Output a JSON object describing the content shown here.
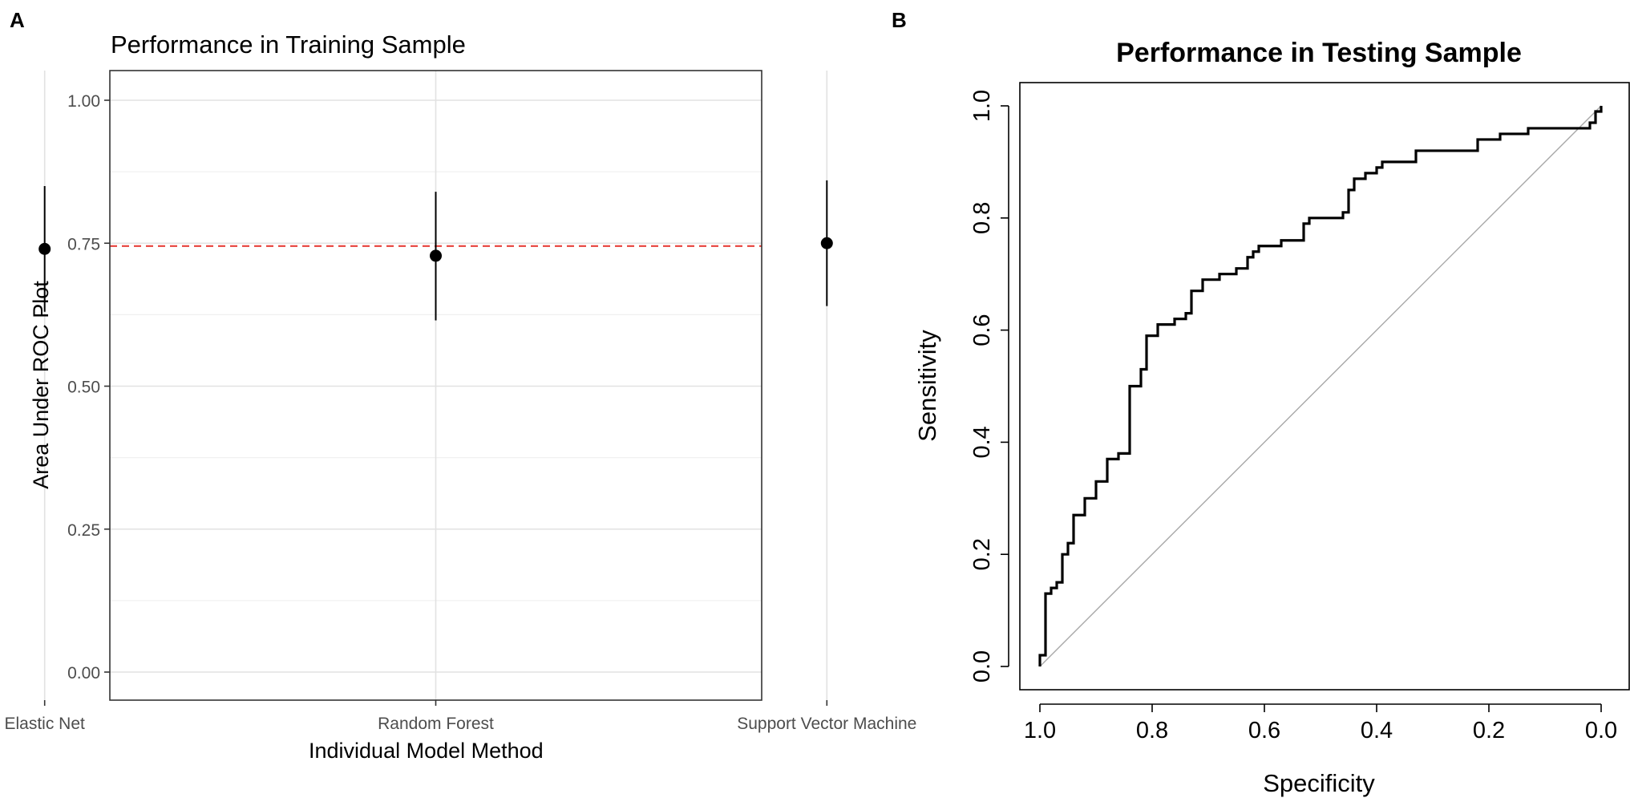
{
  "chart_data": [
    {
      "panel_label": "A",
      "type": "scatter",
      "title": "Performance in Training Sample",
      "xlabel": "Individual Model Method",
      "ylabel": "Area Under ROC Plot",
      "ylim": [
        0,
        1
      ],
      "yticks": [
        "0.00",
        "0.25",
        "0.50",
        "0.75",
        "1.00"
      ],
      "categories": [
        "Elastic Net",
        "Random Forest",
        "Support Vector Machine"
      ],
      "values": [
        0.74,
        0.728,
        0.75
      ],
      "lower": [
        0.63,
        0.615,
        0.64
      ],
      "upper": [
        0.85,
        0.84,
        0.86
      ],
      "reference_line": 0.745,
      "reference_color": "#e8413b",
      "grid": true
    },
    {
      "panel_label": "B",
      "type": "line",
      "title": "Performance in Testing Sample",
      "xlabel": "Specificity",
      "ylabel": "Sensitivity",
      "xlim": [
        1.0,
        0.0
      ],
      "ylim": [
        0,
        1
      ],
      "xticks": [
        "1.0",
        "0.8",
        "0.6",
        "0.4",
        "0.2",
        "0.0"
      ],
      "yticks": [
        "0.0",
        "0.2",
        "0.4",
        "0.6",
        "0.8",
        "1.0"
      ],
      "diagonal_color": "#a8a8a8",
      "roc_curve": {
        "specificity": [
          1.0,
          1.0,
          0.99,
          0.99,
          0.98,
          0.97,
          0.96,
          0.95,
          0.94,
          0.93,
          0.92,
          0.9,
          0.89,
          0.88,
          0.86,
          0.85,
          0.84,
          0.82,
          0.81,
          0.79,
          0.76,
          0.74,
          0.73,
          0.71,
          0.68,
          0.65,
          0.63,
          0.62,
          0.61,
          0.59,
          0.57,
          0.54,
          0.53,
          0.52,
          0.49,
          0.46,
          0.45,
          0.44,
          0.42,
          0.4,
          0.39,
          0.36,
          0.33,
          0.3,
          0.25,
          0.22,
          0.18,
          0.13,
          0.08,
          0.02,
          0.01,
          0.0
        ],
        "sensitivity": [
          0.0,
          0.02,
          0.02,
          0.13,
          0.14,
          0.15,
          0.2,
          0.22,
          0.27,
          0.27,
          0.3,
          0.33,
          0.33,
          0.37,
          0.38,
          0.38,
          0.5,
          0.53,
          0.59,
          0.61,
          0.62,
          0.63,
          0.67,
          0.69,
          0.7,
          0.71,
          0.73,
          0.74,
          0.75,
          0.75,
          0.76,
          0.76,
          0.79,
          0.8,
          0.8,
          0.81,
          0.85,
          0.87,
          0.88,
          0.89,
          0.9,
          0.9,
          0.92,
          0.92,
          0.92,
          0.94,
          0.95,
          0.96,
          0.96,
          0.97,
          0.99,
          1.0
        ]
      }
    }
  ]
}
